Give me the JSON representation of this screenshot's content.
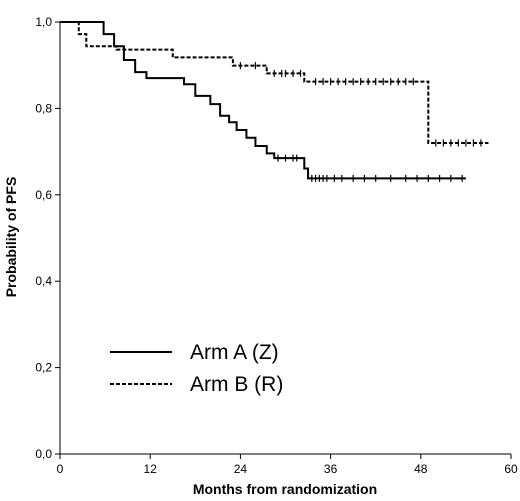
{
  "chart_data": {
    "type": "line",
    "title": "",
    "xlabel": "Months from randomization",
    "ylabel": "Probability of PFS",
    "xlim": [
      0,
      60
    ],
    "ylim": [
      0.0,
      1.0
    ],
    "x_ticks": [
      0,
      12,
      24,
      36,
      48,
      60
    ],
    "x_tick_labels": [
      "0",
      "12",
      "24",
      "36",
      "48",
      "60"
    ],
    "y_ticks": [
      0.0,
      0.2,
      0.4,
      0.6,
      0.8,
      1.0
    ],
    "y_tick_labels": [
      "0,0",
      "0,2",
      "0,4",
      "0,6",
      "0,8",
      "1,0"
    ],
    "grid": false,
    "legend_position": "bottom-left",
    "series": [
      {
        "name": "Arm A (Z)",
        "line_style": "solid",
        "color": "#000000",
        "steps": [
          [
            0,
            1.0
          ],
          [
            5.8,
            0.972
          ],
          [
            7.2,
            0.944
          ],
          [
            8.5,
            0.912
          ],
          [
            10,
            0.884
          ],
          [
            11.5,
            0.87
          ],
          [
            16.5,
            0.856
          ],
          [
            18,
            0.829
          ],
          [
            20,
            0.81
          ],
          [
            21.3,
            0.783
          ],
          [
            22.5,
            0.768
          ],
          [
            23.5,
            0.75
          ],
          [
            24.8,
            0.732
          ],
          [
            26,
            0.713
          ],
          [
            27.5,
            0.696
          ],
          [
            28.5,
            0.685
          ],
          [
            32.5,
            0.661
          ],
          [
            33,
            0.638
          ]
        ],
        "end_x": 54,
        "censored": [
          29,
          30,
          31,
          31.5,
          33.5,
          34,
          34.5,
          35,
          35.5,
          36.5,
          37.5,
          39,
          40.5,
          42,
          44,
          46,
          47.5,
          49,
          50.5,
          52,
          53.5
        ]
      },
      {
        "name": "Arm B (R)",
        "line_style": "dashed",
        "color": "#000000",
        "steps": [
          [
            0,
            1.0
          ],
          [
            2.5,
            0.972
          ],
          [
            3.5,
            0.944
          ],
          [
            7.5,
            0.936
          ],
          [
            15,
            0.918
          ],
          [
            23,
            0.899
          ],
          [
            27.5,
            0.881
          ],
          [
            32.5,
            0.862
          ],
          [
            49,
            0.72
          ]
        ],
        "end_x": 57,
        "censored": [
          24,
          26,
          28.5,
          29.5,
          30,
          31,
          32,
          34,
          35,
          36,
          37,
          38,
          39,
          40,
          41,
          42,
          43,
          44,
          45,
          46,
          47,
          50,
          51,
          52,
          53,
          54,
          55,
          56
        ]
      }
    ]
  }
}
